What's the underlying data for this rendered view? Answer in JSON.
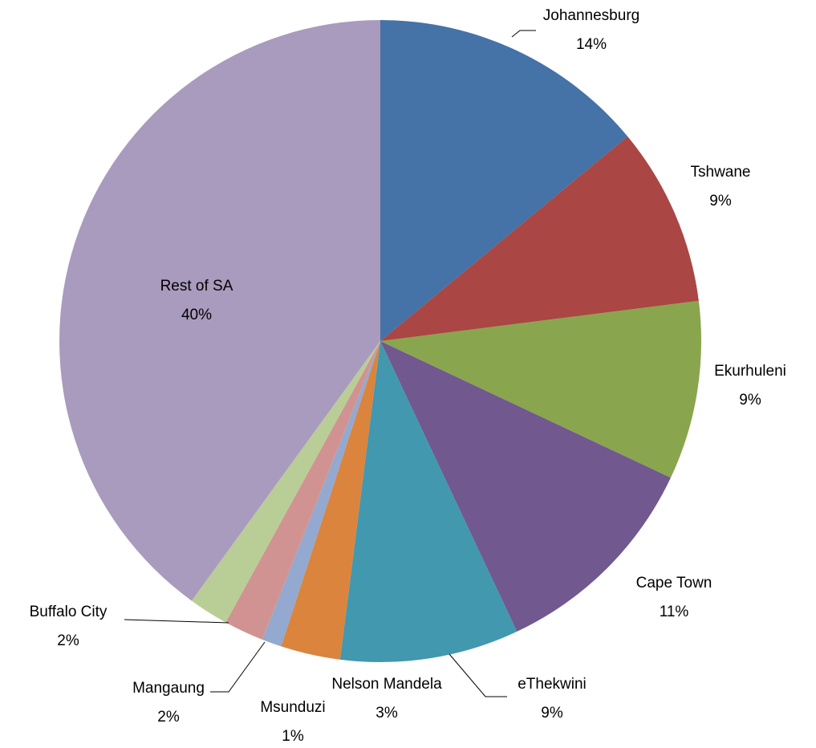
{
  "chart_data": {
    "type": "pie",
    "categories": [
      "Johannesburg",
      "Tshwane",
      "Ekurhuleni",
      "Cape Town",
      "eThekwini",
      "Nelson Mandela",
      "Msunduzi",
      "Mangaung",
      "Buffalo City",
      "Rest of SA"
    ],
    "values": [
      14,
      9,
      9,
      11,
      9,
      3,
      1,
      2,
      2,
      40
    ],
    "value_labels": [
      "14%",
      "9%",
      "9%",
      "11%",
      "9%",
      "3%",
      "1%",
      "2%",
      "2%",
      "40%"
    ],
    "colors": [
      "#4572a7",
      "#aa4643",
      "#89a54e",
      "#71588f",
      "#4198af",
      "#db843d",
      "#93a9cf",
      "#d19392",
      "#b9cd96",
      "#a99bbd"
    ]
  }
}
